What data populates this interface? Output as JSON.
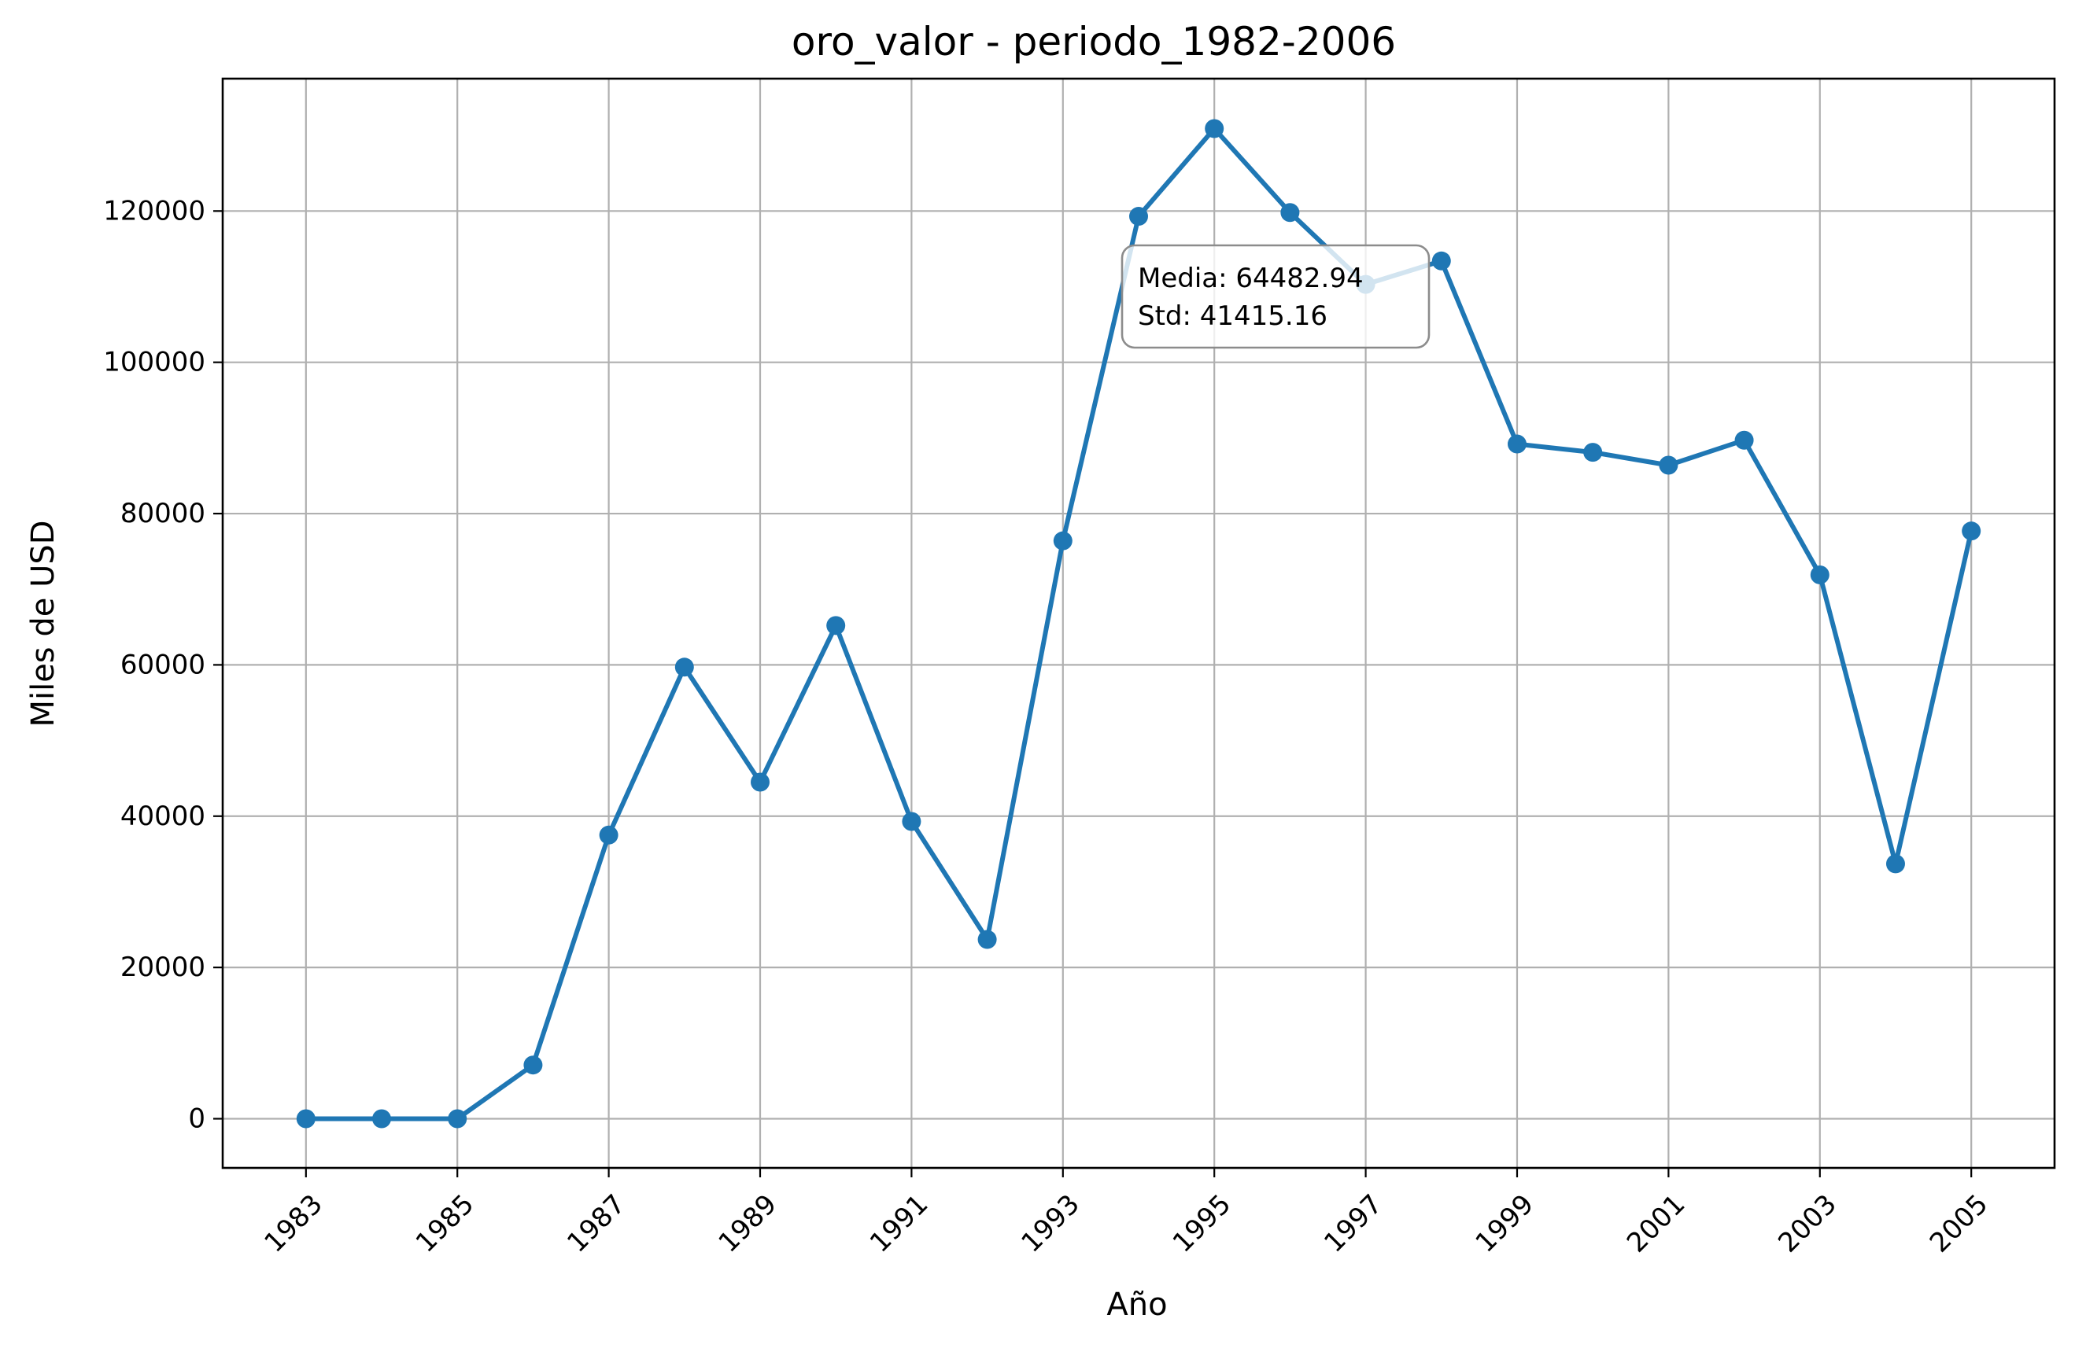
{
  "chart_data": {
    "type": "line",
    "title": "oro_valor - periodo_1982-2006",
    "xlabel": "Año",
    "ylabel": "Miles de USD",
    "x": [
      1983,
      1984,
      1985,
      1986,
      1987,
      1988,
      1989,
      1990,
      1991,
      1992,
      1993,
      1994,
      1995,
      1996,
      1997,
      1998,
      1999,
      2000,
      2001,
      2002,
      2003,
      2004,
      2005
    ],
    "series": [
      {
        "name": "",
        "values": [
          0,
          0,
          0,
          7100,
          37500,
          59700,
          44500,
          65200,
          39300,
          23700,
          76400,
          119300,
          130900,
          119800,
          110300,
          113400,
          89200,
          88100,
          86400,
          89700,
          71900,
          33700,
          77700
        ]
      }
    ],
    "xticks": [
      "1983",
      "1985",
      "1987",
      "1989",
      "1991",
      "1993",
      "1995",
      "1997",
      "1999",
      "2001",
      "2003",
      "2005"
    ],
    "yticks": [
      "0",
      "20000",
      "40000",
      "60000",
      "80000",
      "100000",
      "120000"
    ],
    "xlim": [
      1981.9,
      2006.1
    ],
    "ylim": [
      -6500,
      137500
    ],
    "grid": true,
    "line_color": "#1f77b4",
    "annotation": {
      "lines": [
        "Media: 64482.94",
        "Std: 41415.16"
      ],
      "placement": "upper-center"
    }
  }
}
